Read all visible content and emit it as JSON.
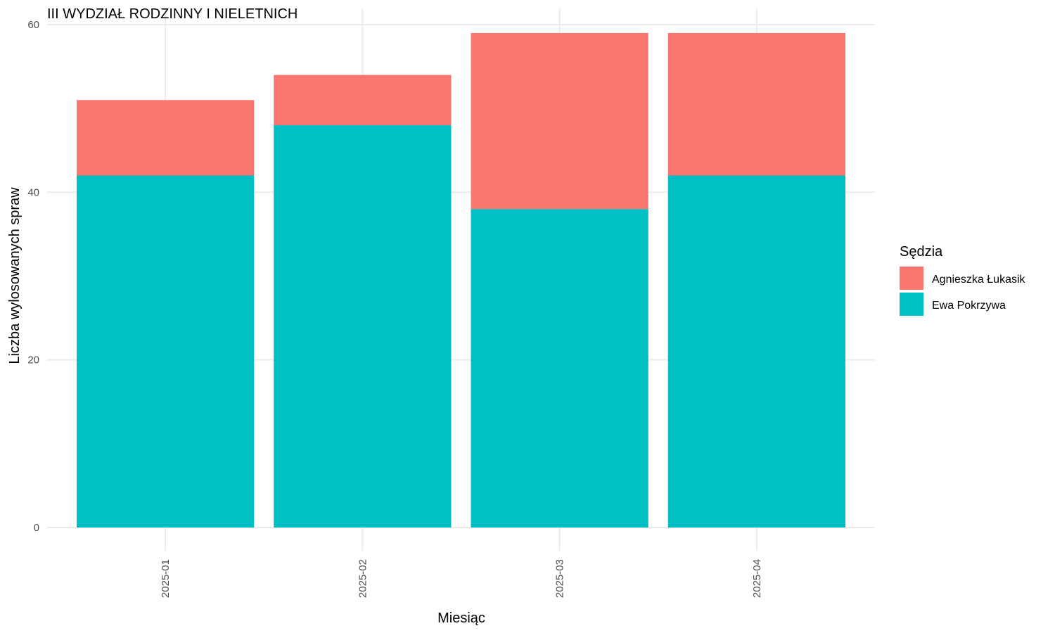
{
  "chart_data": {
    "type": "bar",
    "stacked": true,
    "title": "III WYDZIAŁ RODZINNY I NIELETNICH",
    "xlabel": "Miesiąc",
    "ylabel": "Liczba wylosowanych spraw",
    "categories": [
      "2025-01",
      "2025-02",
      "2025-03",
      "2025-04"
    ],
    "series": [
      {
        "name": "Ewa Pokrzywa",
        "color": "#00BFC4",
        "values": [
          42,
          48,
          38,
          42
        ]
      },
      {
        "name": "Agnieszka Łukasik",
        "color": "#F8766D",
        "values": [
          9,
          6,
          21,
          17
        ]
      }
    ],
    "ylim": [
      0,
      60
    ],
    "yticks": [
      0,
      20,
      40,
      60
    ],
    "grid": true,
    "legend": {
      "title": "Sędzia",
      "placement": "right",
      "entries": [
        "Agnieszka Łukasik",
        "Ewa Pokrzywa"
      ]
    }
  }
}
